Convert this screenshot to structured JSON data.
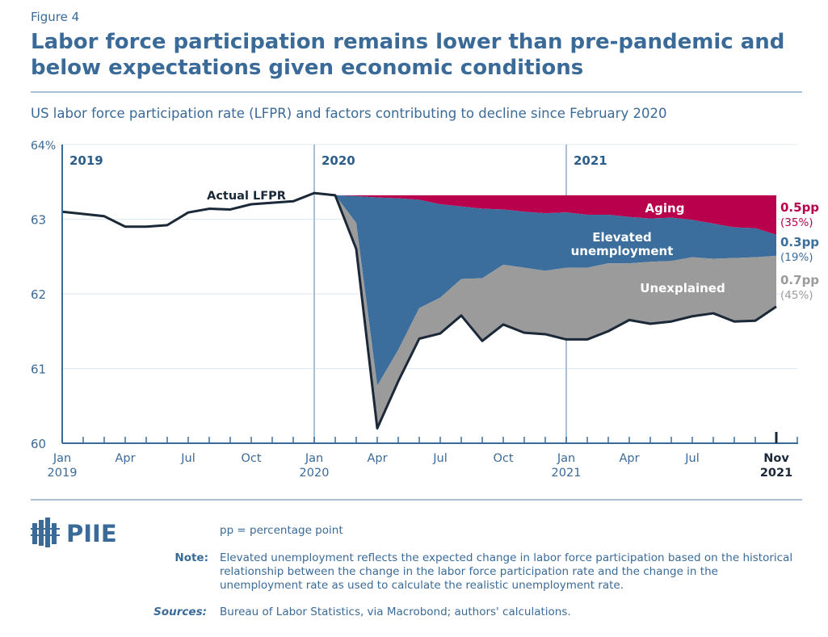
{
  "header": {
    "figure_label": "Figure 4",
    "title": "Labor force participation remains lower than pre-pandemic and below expectations given economic conditions",
    "subtitle": "US labor force participation rate (LFPR) and factors contributing to decline since February 2020"
  },
  "colors": {
    "text": "#3a6a98",
    "aging": "#b8004c",
    "elevated": "#3b6e9c",
    "unexplained": "#9b9b9b",
    "actual": "#1b2838",
    "grid": "#dfe7ef",
    "year_line": "#a9bfd6"
  },
  "chart_data": {
    "type": "area",
    "title": "",
    "xlabel": "",
    "ylabel": "",
    "ylim": [
      60,
      64
    ],
    "y_ticks": [
      "60",
      "61",
      "62",
      "63",
      "64%"
    ],
    "grid": true,
    "x_range": [
      "Jan 2019",
      "Dec 2021"
    ],
    "year_labels": [
      "2019",
      "2020",
      "2021"
    ],
    "x_ticks": [
      {
        "month": 0,
        "label": "Jan",
        "sub": "2019"
      },
      {
        "month": 3,
        "label": "Apr",
        "sub": ""
      },
      {
        "month": 6,
        "label": "Jul",
        "sub": ""
      },
      {
        "month": 9,
        "label": "Oct",
        "sub": ""
      },
      {
        "month": 12,
        "label": "Jan",
        "sub": "2020"
      },
      {
        "month": 15,
        "label": "Apr",
        "sub": ""
      },
      {
        "month": 18,
        "label": "Jul",
        "sub": ""
      },
      {
        "month": 21,
        "label": "Oct",
        "sub": ""
      },
      {
        "month": 24,
        "label": "Jan",
        "sub": "2021"
      },
      {
        "month": 27,
        "label": "Apr",
        "sub": ""
      },
      {
        "month": 30,
        "label": "Jul",
        "sub": ""
      },
      {
        "month": 34,
        "label": "Nov",
        "sub": "2021",
        "bold": true
      }
    ],
    "actual_lfpr": {
      "name": "Actual LFPR",
      "start": "Jan 2019",
      "values": [
        63.1,
        63.07,
        63.04,
        62.9,
        62.9,
        62.92,
        63.09,
        63.14,
        63.13,
        63.2,
        63.22,
        63.24,
        63.35,
        63.32,
        62.6,
        60.2,
        60.83,
        61.4,
        61.47,
        61.71,
        61.37,
        61.59,
        61.48,
        61.46,
        61.39,
        61.39,
        61.5,
        61.65,
        61.6,
        61.63,
        61.7,
        61.74,
        61.63,
        61.64,
        61.83
      ]
    },
    "stack_start": "Feb 2020",
    "pre_pandemic_level": 63.32,
    "series": [
      {
        "name": "Aging",
        "lower_bound": [
          63.32,
          63.31,
          63.29,
          63.28,
          63.26,
          63.2,
          63.17,
          63.14,
          63.13,
          63.1,
          63.08,
          63.09,
          63.06,
          63.06,
          63.03,
          63.01,
          63.02,
          62.99,
          62.94,
          62.89,
          62.88,
          62.79
        ],
        "label": "0.5pp",
        "share": "(35%)"
      },
      {
        "name": "Elevated unemployment",
        "lower_bound": [
          63.32,
          62.95,
          60.77,
          61.25,
          61.81,
          61.95,
          62.2,
          62.21,
          62.39,
          62.35,
          62.31,
          62.35,
          62.35,
          62.41,
          62.41,
          62.43,
          62.44,
          62.49,
          62.47,
          62.48,
          62.49,
          62.51
        ],
        "label": "0.3pp",
        "share": "(19%)"
      },
      {
        "name": "Unexplained",
        "lower_bound": "actual_lfpr",
        "label": "0.7pp",
        "share": "(45%)"
      }
    ]
  },
  "footer": {
    "logo": "PIIE",
    "pp_note": "pp = percentage point",
    "note_label": "Note:",
    "note": "Elevated unemployment reflects the expected change in labor force participation based on the historical relationship between the change in the labor force participation rate and the change in the unemployment rate as used to calculate the realistic unemployment rate.",
    "sources_label": "Sources:",
    "sources": "Bureau of Labor Statistics, via Macrobond; authors' calculations."
  }
}
